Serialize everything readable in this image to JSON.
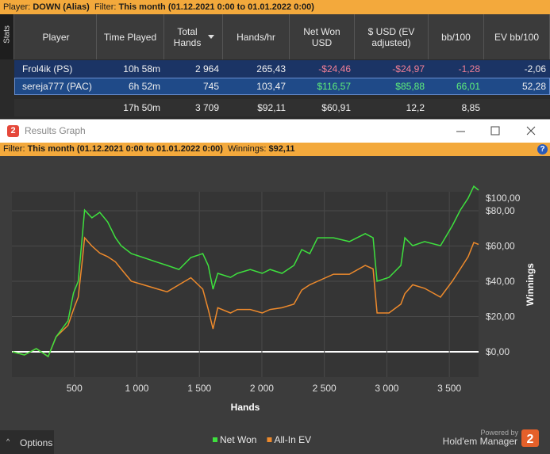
{
  "top_bar": {
    "player_label": "Player:",
    "player": "DOWN (Alias)",
    "filter_label": "Filter:",
    "filter": "This month (01.12.2021 0:00 to 01.01.2022 0:00)"
  },
  "side_tab": "Stats",
  "table": {
    "columns": [
      "Player",
      "Time Played",
      "Total Hands",
      "Hands/hr",
      "Net Won USD",
      "$ USD (EV adjusted)",
      "bb/100",
      "EV bb/100"
    ],
    "rows": [
      [
        "Frol4ik (PS)",
        "10h 58m",
        "2 964",
        "265,43",
        "-$24,46",
        "-$24,97",
        "-1,28",
        "-2,06"
      ],
      [
        "sereja777 (PAC)",
        "6h 52m",
        "745",
        "103,47",
        "$116,57",
        "$85,88",
        "66,01",
        "52,28"
      ]
    ],
    "total": [
      "17h 50m",
      "3 709",
      "$92,11",
      "$60,91",
      "12,2",
      "8,85"
    ]
  },
  "graph_window": {
    "icon": "2",
    "title": "Results Graph",
    "filter_label": "Filter:",
    "filter": "This month (01.12.2021 0:00 to 01.01.2022 0:00)",
    "winnings_label": "Winnings:",
    "winnings": "$92,11",
    "help": "?"
  },
  "chart": {
    "type": "line",
    "xlabel": "Hands",
    "ylabel": "Winnings",
    "xlim": [
      0,
      3734
    ],
    "ylim": [
      -14.4,
      90.8
    ],
    "xticks": [
      {
        "value": 500,
        "label": "500"
      },
      {
        "value": 1000,
        "label": "1 000"
      },
      {
        "value": 1500,
        "label": "1 500"
      },
      {
        "value": 2000,
        "label": "2 000"
      },
      {
        "value": 2500,
        "label": "2 500"
      },
      {
        "value": 3000,
        "label": "3 000"
      },
      {
        "value": 3500,
        "label": "3 500"
      }
    ],
    "yticks": [
      {
        "value": 0,
        "label": "$0,00"
      },
      {
        "value": 20,
        "label": "$20,00"
      },
      {
        "value": 40,
        "label": "$40,00"
      },
      {
        "value": 60,
        "label": "$60,00"
      },
      {
        "value": 80,
        "label": "$80,00"
      },
      {
        "value": 100,
        "label": "$100,00"
      }
    ],
    "grid": true,
    "x": [
      5,
      100,
      195,
      290,
      354,
      449,
      493,
      531,
      562,
      582,
      640,
      703,
      766,
      829,
      874,
      956,
      1051,
      1146,
      1242,
      1337,
      1432,
      1527,
      1571,
      1609,
      1647,
      1749,
      1804,
      1907,
      2003,
      2066,
      2161,
      2256,
      2319,
      2383,
      2446,
      2573,
      2700,
      2827,
      2890,
      2922,
      3017,
      3112,
      3144,
      3207,
      3302,
      3429,
      3524,
      3588,
      3651,
      3696,
      3734
    ],
    "series": [
      {
        "name": "Net Won",
        "color": "#3ee03e",
        "values": [
          0,
          -1.8,
          1.8,
          -2.7,
          8.5,
          17.5,
          33.3,
          40,
          64.7,
          80.4,
          76,
          79.1,
          73.7,
          64.7,
          60.2,
          55.7,
          53.5,
          51.2,
          49,
          46.7,
          53.5,
          55.7,
          49,
          35.5,
          44.5,
          42.2,
          44.5,
          46.7,
          44.5,
          46.7,
          44.5,
          49,
          58,
          55.7,
          64.7,
          64.7,
          62.5,
          67,
          64.7,
          40,
          42.2,
          49,
          64.7,
          60.2,
          62.5,
          60.2,
          71.5,
          80.4,
          87.2,
          93.9,
          91.7
        ]
      },
      {
        "name": "All-In EV",
        "color": "#ee8a2c",
        "values": [
          0,
          -1.8,
          1.8,
          -2.7,
          8.5,
          15,
          24,
          31,
          51,
          64.7,
          60,
          56,
          54,
          51,
          47,
          40,
          38,
          36,
          34,
          38,
          42,
          35.5,
          24,
          13,
          25,
          22,
          24,
          24,
          22,
          24,
          25,
          27,
          35,
          38,
          40,
          44,
          44,
          49,
          47,
          22,
          22,
          27,
          33,
          38,
          36,
          31,
          40,
          47,
          54,
          62,
          60.9
        ]
      }
    ]
  },
  "footer": {
    "options": "Options",
    "powered_by": "Powered by",
    "brand": "Hold'em Manager",
    "logo": "2"
  }
}
